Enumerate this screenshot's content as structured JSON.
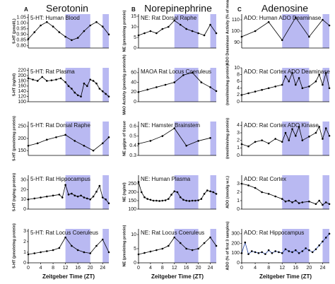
{
  "headers": [
    {
      "letter": "A",
      "title": "Serotonin"
    },
    {
      "letter": "B",
      "title": "Norepinephrine"
    },
    {
      "letter": "C",
      "title": "Adenosine"
    }
  ],
  "chart_data": [
    {
      "type": "line",
      "title": "5-HT: Human Blood",
      "y_label": "5-HT (pmol/L)",
      "x": [
        0,
        2,
        4,
        6,
        8,
        10,
        12,
        14,
        16,
        18,
        20,
        22,
        24,
        26
      ],
      "values": [
        0.86,
        0.92,
        0.98,
        1.01,
        0.97,
        0.92,
        0.88,
        0.85,
        0.87,
        0.93,
        0.98,
        1.01,
        0.97,
        0.9
      ],
      "xlim": [
        0,
        26
      ],
      "ylim": [
        0.78,
        1.08
      ],
      "yticks": [
        {
          "value": 0.8,
          "label": "0.80"
        },
        0.85,
        {
          "value": 0.9,
          "label": "0.90"
        },
        0.95,
        {
          "value": 1,
          "label": "1.00"
        },
        1.05
      ],
      "shaded_ranges": [
        [
          12,
          20
        ],
        [
          24,
          26
        ]
      ],
      "color": "#000000"
    },
    {
      "type": "line",
      "title": "5-HT: Rat Plasma",
      "y_label": "5-HT (ng/ml)",
      "x": [
        0,
        1.5,
        3,
        4.5,
        6,
        7.5,
        9,
        10.5,
        12,
        13,
        14,
        15,
        16,
        17,
        18,
        19,
        20,
        21,
        22,
        23,
        24,
        25,
        26
      ],
      "values": [
        190,
        185,
        180,
        195,
        180,
        182,
        185,
        190,
        175,
        160,
        150,
        135,
        125,
        120,
        170,
        160,
        185,
        180,
        170,
        150,
        140,
        130,
        120
      ],
      "xlim": [
        0,
        26
      ],
      "ylim": [
        100,
        230
      ],
      "yticks": [
        100,
        120,
        140,
        160,
        180,
        200,
        220
      ],
      "shaded_ranges": [
        [
          12,
          20
        ],
        [
          24,
          26
        ]
      ],
      "color": "#000000"
    },
    {
      "type": "line",
      "title": "5-HT: Rat Dorsal Raphe",
      "y_label": "5-HT (pmole/mg protein)",
      "x": [
        0,
        3,
        6,
        9,
        12,
        15,
        18,
        21,
        24,
        26
      ],
      "values": [
        170,
        180,
        195,
        205,
        215,
        190,
        170,
        150,
        180,
        205
      ],
      "xlim": [
        0,
        26
      ],
      "ylim": [
        130,
        270
      ],
      "yticks": [
        150,
        200,
        250
      ],
      "shaded_ranges": [
        [
          12,
          20
        ],
        [
          24,
          26
        ]
      ],
      "color": "#000000"
    },
    {
      "type": "line",
      "title": "5-HT: Rat Hippocampus",
      "y_label": "5-HT (ng/mg protein)",
      "x": [
        0,
        2,
        4,
        6,
        8,
        10,
        11,
        12,
        13,
        14,
        15,
        16,
        17,
        18,
        19,
        20,
        21,
        22,
        23,
        24,
        25,
        26
      ],
      "values": [
        10,
        11,
        12,
        13,
        14,
        15,
        12,
        25,
        15,
        16,
        14,
        13,
        14,
        12,
        11,
        10,
        13,
        18,
        24,
        12,
        10,
        6
      ],
      "xlim": [
        0,
        26
      ],
      "ylim": [
        0,
        35
      ],
      "yticks": [
        0,
        10,
        20,
        30
      ],
      "shaded_ranges": [
        [
          12,
          20
        ],
        [
          24,
          26
        ]
      ],
      "color": "#000000"
    },
    {
      "type": "line",
      "title": "5-HT: Rat Locus Coeruleus",
      "y_label": "5-HT (pmole/mg protein)",
      "x_label": "Zeitgeber Time (ZT)",
      "x": [
        0,
        2,
        4,
        6,
        8,
        10,
        12,
        14,
        16,
        18,
        20,
        22,
        24,
        26
      ],
      "values": [
        0.8,
        0.9,
        1.0,
        1.1,
        1.2,
        1.4,
        2.4,
        1.6,
        1.2,
        1.0,
        0.9,
        1.6,
        2.2,
        1.0
      ],
      "xlim": [
        0,
        26
      ],
      "ylim": [
        0,
        3.2
      ],
      "yticks": [
        0,
        1,
        2,
        3
      ],
      "xticks": [
        0,
        4,
        8,
        12,
        16,
        20,
        24
      ],
      "shaded_ranges": [
        [
          12,
          20
        ],
        [
          24,
          26
        ]
      ],
      "color": "#000000"
    },
    {
      "type": "line",
      "title": "NE: Rat Dorsal Raphe",
      "y_label": "NE (pmole/mg protein)",
      "x": [
        0,
        2,
        4,
        6,
        8,
        10,
        12,
        14,
        16,
        18,
        20,
        22,
        24,
        26
      ],
      "values": [
        6,
        7,
        8,
        7,
        9,
        10,
        13,
        11,
        9,
        8,
        7,
        6,
        11,
        7
      ],
      "xlim": [
        0,
        26
      ],
      "ylim": [
        0,
        16
      ],
      "yticks": [
        0,
        5,
        10,
        15
      ],
      "shaded_ranges": [
        [
          12,
          20
        ],
        [
          24,
          26
        ]
      ],
      "color": "#000000"
    },
    {
      "type": "line",
      "title": "MAOA Rat Locus Coeruleus",
      "y_label": "MAO Activity (pmole/g protein/h)",
      "x": [
        0,
        3,
        6,
        9,
        12,
        15,
        18,
        21,
        24,
        26
      ],
      "values": [
        20,
        25,
        30,
        35,
        40,
        55,
        60,
        40,
        30,
        22
      ],
      "xlim": [
        0,
        26
      ],
      "ylim": [
        0,
        70
      ],
      "yticks": [
        0,
        20,
        40,
        60
      ],
      "shaded_ranges": [
        [
          12,
          20
        ],
        [
          24,
          26
        ]
      ],
      "color": "#000000"
    },
    {
      "type": "line",
      "title": "NE: Hamster Brainstem",
      "y_label": "NE μg/gm of tissue",
      "x": [
        0,
        4,
        8,
        12,
        16,
        20,
        24
      ],
      "values": [
        0.42,
        0.45,
        0.5,
        0.58,
        0.4,
        0.45,
        0.48
      ],
      "xlim": [
        0,
        26
      ],
      "ylim": [
        0.3,
        0.65
      ],
      "yticks": [
        0.3,
        0.4,
        0.5,
        0.6
      ],
      "shaded_ranges": [
        [
          12,
          20
        ],
        [
          24,
          26
        ]
      ],
      "color": "#000000"
    },
    {
      "type": "line",
      "title": "NE: Human Plasma",
      "y_label": "NE (ng/ml)",
      "x": [
        0,
        1,
        2,
        3,
        4,
        5,
        6,
        7,
        8,
        9,
        10,
        11,
        12,
        13,
        14,
        15,
        16,
        17,
        18,
        19,
        20,
        21,
        22,
        23,
        24,
        25,
        26
      ],
      "values": [
        260,
        200,
        170,
        160,
        155,
        150,
        150,
        148,
        150,
        152,
        160,
        185,
        205,
        200,
        170,
        155,
        150,
        148,
        150,
        150,
        152,
        160,
        190,
        210,
        205,
        200,
        190
      ],
      "xlim": [
        0,
        26
      ],
      "ylim": [
        100,
        300
      ],
      "yticks": [
        100,
        150,
        200,
        250
      ],
      "shaded_ranges": [
        [
          12,
          20
        ],
        [
          24,
          26
        ]
      ],
      "color": "#000000"
    },
    {
      "type": "line",
      "title": "NE: Rat Locus Coeruleus",
      "y_label": "NE (pmole/mg protein)",
      "x_label": "Zeitgeber Time (ZT)",
      "x": [
        0,
        2,
        4,
        6,
        8,
        10,
        12,
        14,
        16,
        18,
        20,
        22,
        24,
        26
      ],
      "values": [
        3,
        3.5,
        4,
        4.5,
        5,
        6,
        9,
        7,
        5,
        4.5,
        5,
        7,
        9,
        6
      ],
      "xlim": [
        0,
        26
      ],
      "ylim": [
        0,
        12
      ],
      "yticks": [
        0,
        5,
        10
      ],
      "xticks": [
        0,
        4,
        8,
        12,
        16,
        20,
        24
      ],
      "shaded_ranges": [
        [
          12,
          20
        ],
        [
          24,
          26
        ]
      ],
      "color": "#000000"
    },
    {
      "type": "line",
      "title": "ADO: Human  ADO Deaminase",
      "y_label": "ADO Deaminase Activity (% of mean)",
      "x": [
        0,
        4,
        8,
        12,
        16,
        20,
        24,
        26
      ],
      "values": [
        95,
        100,
        108,
        92,
        112,
        95,
        110,
        105
      ],
      "xlim": [
        0,
        26
      ],
      "ylim": [
        85,
        115
      ],
      "yticks": [
        90,
        100,
        110
      ],
      "shaded_ranges": [
        [
          12,
          20
        ],
        [
          24,
          26
        ]
      ],
      "color": "#000000"
    },
    {
      "type": "line",
      "title": "ADO: Rat Cortex  ADO Deaminase",
      "y_label": "(nmol/min/mg protein)",
      "x": [
        0,
        2,
        4,
        6,
        8,
        10,
        12,
        13,
        14,
        15,
        16,
        17,
        18,
        20,
        22,
        23,
        24,
        25,
        26
      ],
      "values": [
        2,
        2.5,
        3,
        3.5,
        4,
        4.5,
        5,
        7.5,
        6,
        8.5,
        5,
        7,
        4,
        4.5,
        6,
        8,
        5,
        8.5,
        4
      ],
      "xlim": [
        0,
        26
      ],
      "ylim": [
        0,
        10
      ],
      "yticks": [
        0,
        2,
        4,
        6,
        8,
        10
      ],
      "shaded_ranges": [
        [
          12,
          20
        ],
        [
          24,
          26
        ]
      ],
      "color": "#000000"
    },
    {
      "type": "line",
      "title": "ADO: Rat Cortex  ADO Kinase",
      "y_label": "(nmol/min/mg protein)",
      "x": [
        0,
        2,
        4,
        6,
        8,
        10,
        12,
        13,
        14,
        15,
        16,
        17,
        18,
        20,
        22,
        23,
        24,
        25,
        26
      ],
      "values": [
        1.5,
        1.2,
        1.8,
        2.0,
        1.6,
        2.2,
        1.8,
        3.0,
        2.0,
        3.5,
        2.6,
        3.8,
        2.0,
        2.5,
        3.0,
        3.8,
        2.2,
        3.6,
        2.6
      ],
      "xlim": [
        0,
        26
      ],
      "ylim": [
        0,
        4.5
      ],
      "yticks": [
        0,
        1,
        2,
        3,
        4
      ],
      "shaded_ranges": [
        [
          12,
          20
        ],
        [
          24,
          26
        ]
      ],
      "color": "#000000"
    },
    {
      "type": "line",
      "title": "ADO: Rat Cortex",
      "y_label": "ADO (nmol/g w.t.)",
      "x": [
        0,
        2,
        4,
        6,
        8,
        10,
        12,
        13,
        14,
        15,
        16,
        17,
        18,
        20,
        22,
        23,
        24,
        25,
        26
      ],
      "values": [
        3.0,
        2.8,
        2.5,
        2.0,
        1.8,
        1.5,
        1.2,
        0.9,
        1.0,
        0.8,
        1.0,
        0.7,
        0.8,
        0.9,
        0.6,
        1.0,
        0.5,
        0.8,
        0.6
      ],
      "xlim": [
        0,
        26
      ],
      "ylim": [
        0,
        4
      ],
      "yticks": [
        0,
        1,
        2,
        3
      ],
      "shaded_ranges": [
        [
          12,
          20
        ],
        [
          24,
          26
        ]
      ],
      "color": "#000000"
    },
    {
      "type": "line",
      "title": "ADO: Rat Hippocampus",
      "y_label": "ADO (% of first 3 samples)",
      "x_label": "Zeitgeber Time (ZT)",
      "x": [
        0,
        1,
        2,
        3,
        4,
        5,
        6,
        7,
        8,
        9,
        10,
        11,
        12,
        13,
        14,
        15,
        16,
        17,
        18,
        19,
        20,
        21,
        22,
        23,
        24,
        25,
        26
      ],
      "values": [
        100,
        210,
        90,
        120,
        110,
        100,
        110,
        90,
        130,
        100,
        120,
        110,
        100,
        140,
        120,
        110,
        130,
        100,
        120,
        150,
        130,
        110,
        140,
        180,
        220,
        260,
        300
      ],
      "xlim": [
        0,
        26
      ],
      "ylim": [
        0,
        350
      ],
      "yticks": [
        0,
        100,
        200,
        300
      ],
      "xticks": [
        0,
        4,
        8,
        12,
        16,
        20,
        24
      ],
      "shaded_ranges": [
        [
          12,
          20
        ],
        [
          24,
          26
        ]
      ],
      "color": "#1f3f9f"
    }
  ]
}
